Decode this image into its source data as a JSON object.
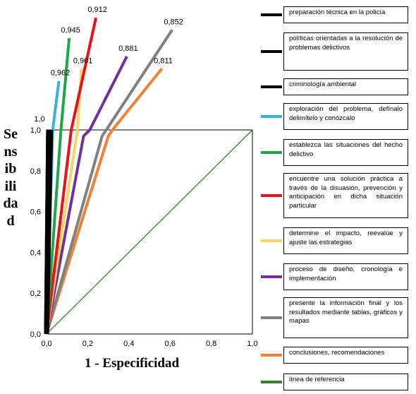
{
  "chart_data": {
    "type": "line",
    "title": "",
    "xlabel": "1 - Especificidad",
    "ylabel": "Sensibilidad",
    "xlim": [
      0,
      1
    ],
    "ylim": [
      0,
      1
    ],
    "x_ticks": [
      "0,0",
      "0,2",
      "0,4",
      "0,6",
      "0,8",
      "1,0"
    ],
    "y_ticks": [
      "0,0",
      "0,2",
      "0,4",
      "0,6",
      "0,8",
      "1,0"
    ],
    "extra_y_label": "1,0",
    "grid": false,
    "legend_position": "right",
    "series": [
      {
        "name": "preparación técnica en la policía",
        "color": "#000000",
        "x": [
          0,
          0.01,
          0.01
        ],
        "y": [
          0,
          1,
          1
        ],
        "auc_label": ""
      },
      {
        "name": "políticas orientadas a la resolución de problemas delictivos",
        "color": "#000000",
        "x": [
          0,
          0.02,
          0.02
        ],
        "y": [
          0,
          1,
          1
        ],
        "auc_label": ""
      },
      {
        "name": "criminología ambiental",
        "color": "#000000",
        "x": [
          0,
          0.01,
          0.01
        ],
        "y": [
          0,
          1,
          1
        ],
        "auc_label": ""
      },
      {
        "name": "exploración del problema, defínalo delimítelo y conózcalo",
        "color": "#33b2e8",
        "x": [
          0,
          0.03,
          0.06
        ],
        "y": [
          0,
          1,
          1.24
        ],
        "auc_label": "0,962"
      },
      {
        "name": "establezca las situaciones del hecho delictivo",
        "color": "#1fa64a",
        "x": [
          0,
          0.07,
          0.11
        ],
        "y": [
          0,
          1,
          1.45
        ],
        "auc_label": "0,945"
      },
      {
        "name": "encuentre una solución práctica a través de la disuasión, prevención y anticipación en dicha situación particular",
        "color": "#e8121a",
        "x": [
          0,
          0.12,
          0.24
        ],
        "y": [
          0,
          1,
          1.55
        ],
        "auc_label": "0,912"
      },
      {
        "name": "determine el impacto, reevalúe y ajuste las estrategias",
        "color": "#f5d565",
        "x": [
          0,
          0.15,
          0.17
        ],
        "y": [
          0,
          1,
          1.3
        ],
        "auc_label": "0,901"
      },
      {
        "name": "proceso de diseño, cronología e implementación",
        "color": "#7030a0",
        "x": [
          0,
          0.18,
          0.21,
          0.39
        ],
        "y": [
          0,
          0.97,
          1,
          1.36
        ],
        "auc_label": "0,881"
      },
      {
        "name": "presente la información final y los resultados mediante tablas, gráficos y mapas",
        "color": "#808080",
        "x": [
          0,
          0.27,
          0.29,
          0.61
        ],
        "y": [
          0,
          0.97,
          1,
          1.49
        ],
        "auc_label": "0,852"
      },
      {
        "name": "conclusiones, recomendaciones",
        "color": "#f48034",
        "x": [
          0,
          0.3,
          0.32,
          0.56
        ],
        "y": [
          0,
          0.97,
          1,
          1.3
        ],
        "auc_label": "0,811"
      },
      {
        "name": "línea de referencia",
        "color": "#3a7f2f",
        "x": [
          0,
          1
        ],
        "y": [
          0,
          1
        ],
        "auc_label": ""
      }
    ]
  }
}
